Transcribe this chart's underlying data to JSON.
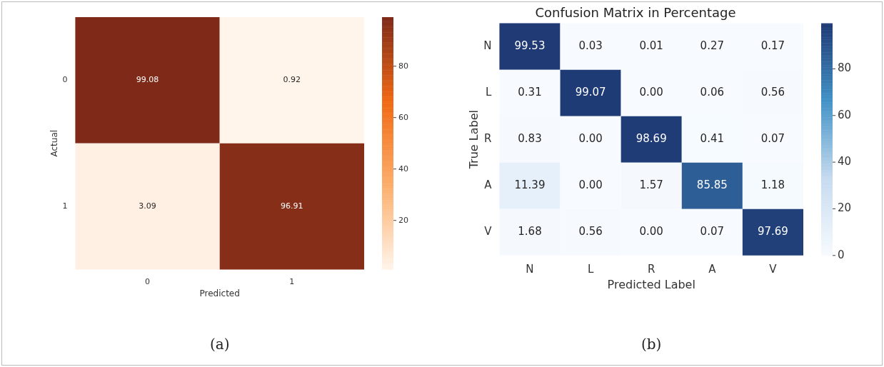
{
  "chart_data": [
    {
      "type": "heatmap",
      "xlabel": "Predicted",
      "ylabel": "Actual",
      "categories": [
        "0",
        "1"
      ],
      "y_categories": [
        "0",
        "1"
      ],
      "cells": [
        [
          99.08,
          0.92
        ],
        [
          3.09,
          96.91
        ]
      ],
      "cell_labels": [
        [
          "99.08",
          "0.92"
        ],
        [
          "3.09",
          "96.91"
        ]
      ],
      "colors": [
        "#fff5eb",
        "#fdae6b",
        "#f16913",
        "#7f2a18"
      ],
      "clim": [
        0.92,
        99.08
      ],
      "cticks": [
        20,
        40,
        60,
        80
      ],
      "annotations": [
        "(a)"
      ]
    },
    {
      "type": "heatmap",
      "title": "Confusion Matrix in Percentage",
      "xlabel": "Predicted Label",
      "ylabel": "True Label",
      "categories": [
        "N",
        "L",
        "R",
        "A",
        "V"
      ],
      "y_categories": [
        "N",
        "L",
        "R",
        "A",
        "V"
      ],
      "cells": [
        [
          99.53,
          0.03,
          0.01,
          0.27,
          0.17
        ],
        [
          0.31,
          99.07,
          0.0,
          0.06,
          0.56
        ],
        [
          0.83,
          0.0,
          98.69,
          0.41,
          0.07
        ],
        [
          11.39,
          0.0,
          1.57,
          85.85,
          1.18
        ],
        [
          1.68,
          0.56,
          0.0,
          0.07,
          97.69
        ]
      ],
      "cell_labels": [
        [
          "99.53",
          "0.03",
          "0.01",
          "0.27",
          "0.17"
        ],
        [
          "0.31",
          "99.07",
          "0.00",
          "0.06",
          "0.56"
        ],
        [
          "0.83",
          "0.00",
          "98.69",
          "0.41",
          "0.07"
        ],
        [
          "11.39",
          "0.00",
          "1.57",
          "85.85",
          "1.18"
        ],
        [
          "1.68",
          "0.56",
          "0.00",
          "0.07",
          "97.69"
        ]
      ],
      "colors": [
        "#f7fbff",
        "#c6dbef",
        "#4292c6",
        "#1f3a75"
      ],
      "clim": [
        0,
        99.53
      ],
      "cticks": [
        0,
        20,
        40,
        60,
        80
      ],
      "annotations": [
        "(b)"
      ]
    }
  ]
}
